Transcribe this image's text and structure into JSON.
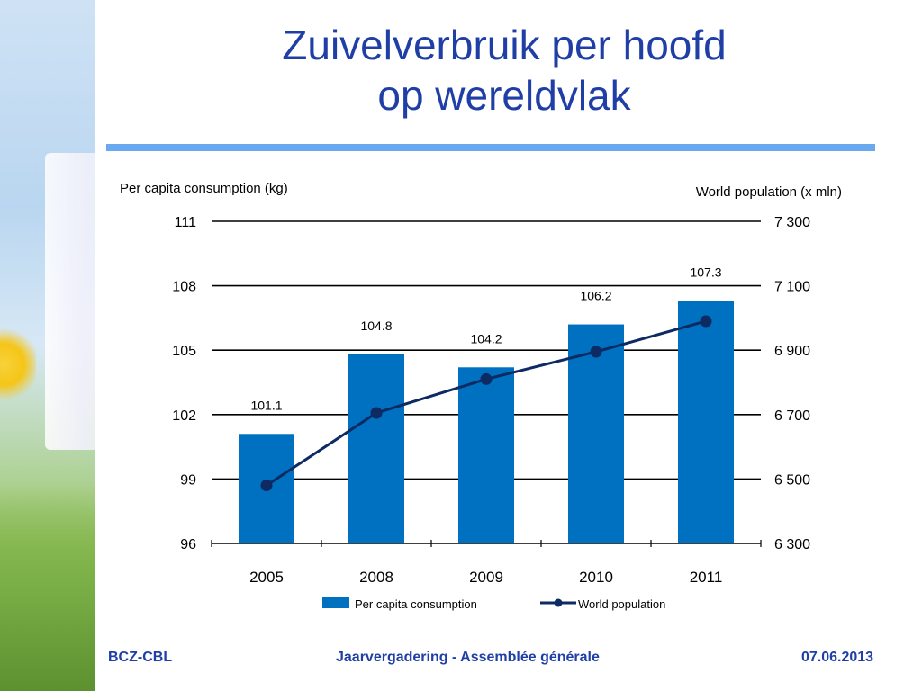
{
  "slide": {
    "title_line1": "Zuivelverbruik per hoofd",
    "title_line2": "op wereldvlak",
    "colors": {
      "title": "#1f3fa6",
      "rule": "#6aa8f0",
      "bar": "#0070c0",
      "line": "#0d2a63"
    }
  },
  "footer": {
    "left": "BCZ-CBL",
    "center": "Jaarvergadering  -  Assemblée générale",
    "right": "07.06.2013"
  },
  "chart_data": {
    "type": "bar",
    "categories": [
      "2005",
      "2008",
      "2009",
      "2010",
      "2011"
    ],
    "series": [
      {
        "name": "Per capita consumption",
        "type": "bar",
        "axis": "left",
        "values": [
          101.1,
          104.8,
          104.2,
          106.2,
          107.3
        ]
      },
      {
        "name": "World population",
        "type": "line",
        "axis": "right",
        "values": [
          6480,
          6705,
          6810,
          6895,
          6990
        ]
      }
    ],
    "data_labels": [
      "101.1",
      "104.8",
      "104.2",
      "106.2",
      "107.3"
    ],
    "ylabel_left": "Per capita consumption (kg)",
    "ylabel_right": "World population (x mln)",
    "ylim_left": [
      96,
      111
    ],
    "ylim_right": [
      6300,
      7300
    ],
    "yticks_left": [
      "96",
      "99",
      "102",
      "105",
      "108",
      "111"
    ],
    "yticks_right": [
      "6 300",
      "6 500",
      "6 700",
      "6 900",
      "7 100",
      "7 300"
    ],
    "grid": true,
    "legend_position": "bottom"
  }
}
